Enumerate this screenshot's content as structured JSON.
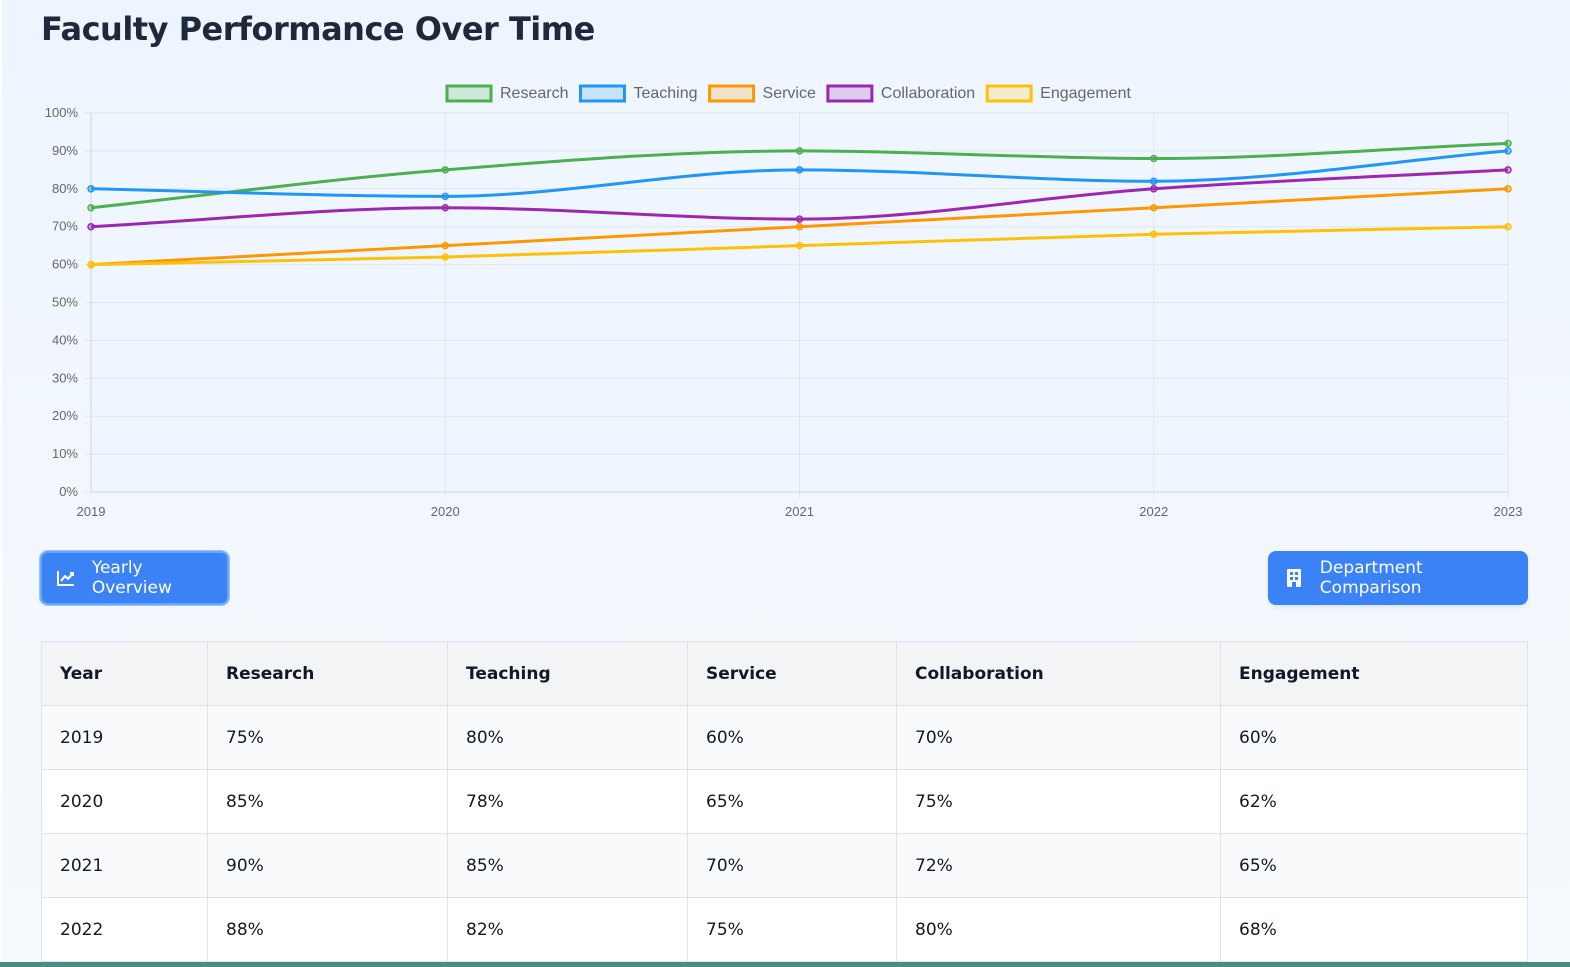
{
  "page": {
    "title": "Faculty Performance Over Time"
  },
  "buttons": {
    "yearly": {
      "label": "Yearly Overview",
      "icon": "chart-line-icon"
    },
    "department": {
      "label": "Department Comparison",
      "icon": "building-icon"
    }
  },
  "chart_data": {
    "type": "line",
    "x": [
      "2019",
      "2020",
      "2021",
      "2022",
      "2023"
    ],
    "ylim": [
      0,
      100
    ],
    "y_ticks": [
      "0%",
      "10%",
      "20%",
      "30%",
      "40%",
      "50%",
      "60%",
      "70%",
      "80%",
      "90%",
      "100%"
    ],
    "grid": true,
    "legend_position": "top-center",
    "series": [
      {
        "name": "Research",
        "color": "#4caf50",
        "values": [
          75,
          85,
          90,
          88,
          92
        ]
      },
      {
        "name": "Teaching",
        "color": "#2196f3",
        "values": [
          80,
          78,
          85,
          82,
          90
        ]
      },
      {
        "name": "Service",
        "color": "#ff9800",
        "values": [
          60,
          65,
          70,
          75,
          80
        ]
      },
      {
        "name": "Collaboration",
        "color": "#9c27b0",
        "values": [
          70,
          75,
          72,
          80,
          85
        ]
      },
      {
        "name": "Engagement",
        "color": "#ffc107",
        "values": [
          60,
          62,
          65,
          68,
          70
        ]
      }
    ]
  },
  "table": {
    "headers": [
      "Year",
      "Research",
      "Teaching",
      "Service",
      "Collaboration",
      "Engagement"
    ],
    "rows": [
      [
        "2019",
        "75%",
        "80%",
        "60%",
        "70%",
        "60%"
      ],
      [
        "2020",
        "85%",
        "78%",
        "65%",
        "75%",
        "62%"
      ],
      [
        "2021",
        "90%",
        "85%",
        "70%",
        "72%",
        "65%"
      ],
      [
        "2022",
        "88%",
        "82%",
        "75%",
        "80%",
        "68%"
      ]
    ]
  }
}
